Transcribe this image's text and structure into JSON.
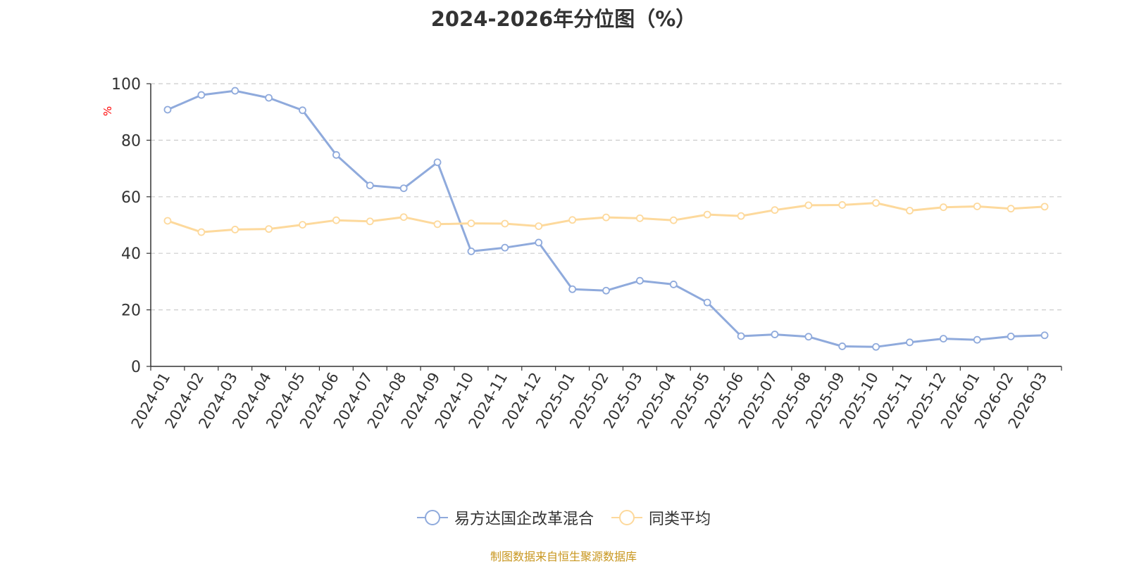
{
  "title": "2024-2026年分位图（%）",
  "source": "制图数据来自恒生聚源数据库",
  "colors": {
    "fund": "#8faadc",
    "avg": "#fdd99c",
    "unit": "#ff0000"
  },
  "chart_data": {
    "type": "line",
    "title": "2024-2026年分位图（%）",
    "ylabel": "%",
    "ylim": [
      0,
      100
    ],
    "yticks": [
      0,
      20,
      40,
      60,
      80,
      100
    ],
    "grid": true,
    "legend_position": "bottom",
    "categories": [
      "2024-01",
      "2024-02",
      "2024-03",
      "2024-04",
      "2024-05",
      "2024-06",
      "2024-07",
      "2024-08",
      "2024-09",
      "2024-10",
      "2024-11",
      "2024-12",
      "2025-01",
      "2025-02",
      "2025-03",
      "2025-04",
      "2025-05",
      "2025-06",
      "2025-07",
      "2025-08",
      "2025-09",
      "2025-10",
      "2025-11",
      "2025-12",
      "2026-01",
      "2026-02",
      "2026-03"
    ],
    "series": [
      {
        "name": "易方达国企改革混合",
        "color": "#8faadc",
        "values": [
          90.8,
          96.0,
          97.5,
          95.0,
          90.6,
          74.8,
          64.0,
          63.0,
          72.2,
          40.7,
          42.0,
          43.8,
          27.3,
          26.8,
          30.3,
          29.0,
          22.6,
          10.7,
          11.3,
          10.5,
          7.1,
          6.9,
          8.5,
          9.8,
          9.4,
          10.6,
          11.0
        ]
      },
      {
        "name": "同类平均",
        "color": "#fdd99c",
        "values": [
          51.5,
          47.5,
          48.4,
          48.6,
          50.1,
          51.7,
          51.3,
          52.8,
          50.3,
          50.6,
          50.5,
          49.6,
          51.8,
          52.7,
          52.4,
          51.7,
          53.7,
          53.2,
          55.3,
          57.0,
          57.1,
          57.8,
          55.1,
          56.3,
          56.6,
          55.8,
          56.5
        ]
      }
    ]
  }
}
